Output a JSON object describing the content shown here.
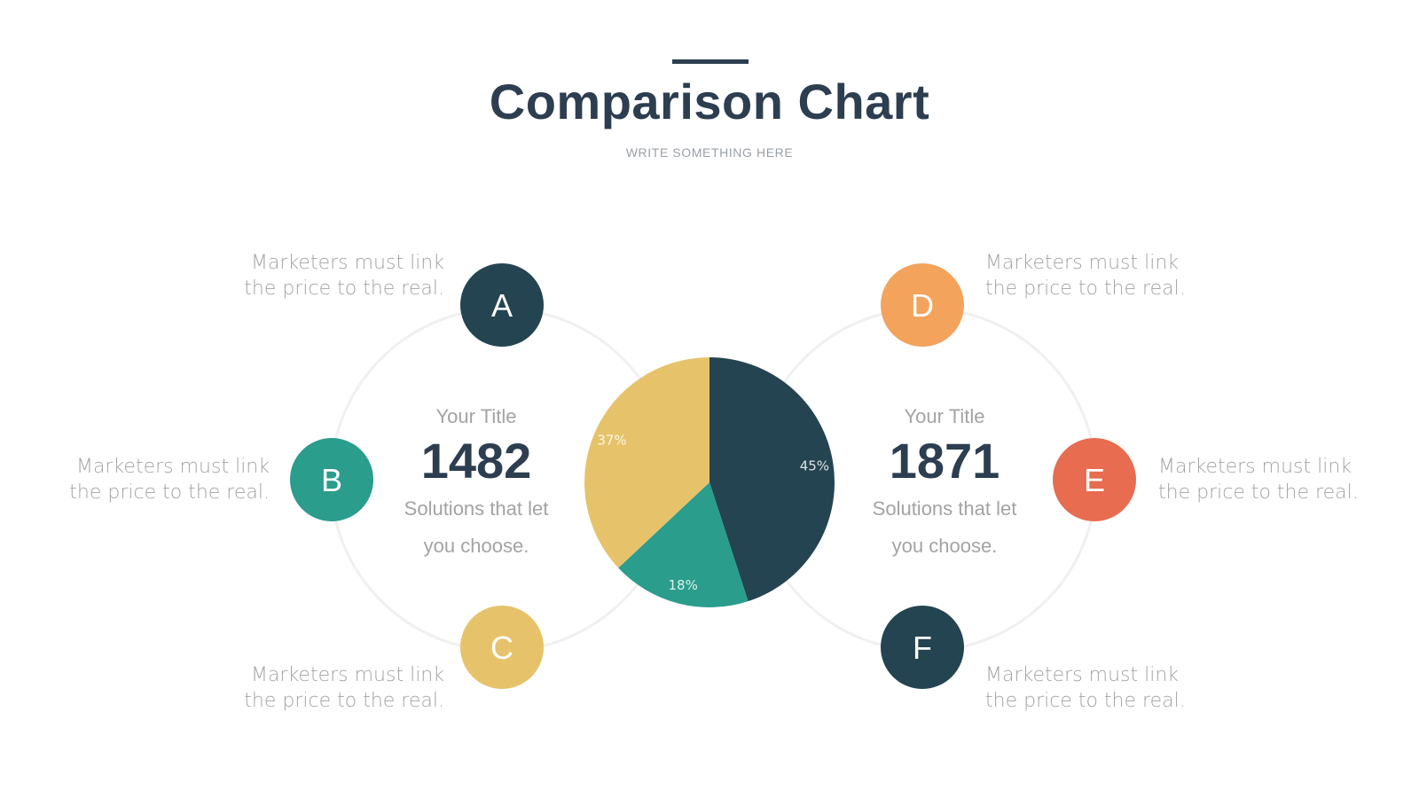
{
  "header": {
    "title": "Comparison Chart",
    "subtitle": "WRITE SOMETHING HERE"
  },
  "colors": {
    "navy": "#234450",
    "teal": "#2a9d8c",
    "gold": "#e6c36b",
    "orange": "#f3a35c",
    "red": "#e76c50",
    "ring": "#f0f0f0",
    "text": "#2c3e50",
    "muted": "#a3a3a3"
  },
  "left_panel": {
    "title": "Your Title",
    "number": "1482",
    "text": "Solutions that let you choose."
  },
  "right_panel": {
    "title": "Your Title",
    "number": "1871",
    "text": "Solutions that let you choose."
  },
  "nodes": [
    {
      "letter": "A",
      "color": "#234450",
      "text": "Marketers must link the price to the real."
    },
    {
      "letter": "B",
      "color": "#2a9d8c",
      "text": "Marketers must link the price to the real."
    },
    {
      "letter": "C",
      "color": "#e6c36b",
      "text": "Marketers must link the price to the real."
    },
    {
      "letter": "D",
      "color": "#f3a35c",
      "text": "Marketers must link the price to the real."
    },
    {
      "letter": "E",
      "color": "#e76c50",
      "text": "Marketers must link the price to the real."
    },
    {
      "letter": "F",
      "color": "#234450",
      "text": "Marketers must link the price to the real."
    }
  ],
  "chart_data": {
    "type": "pie",
    "title": "",
    "slices": [
      {
        "label": "45%",
        "value": 45,
        "color": "#234450"
      },
      {
        "label": "18%",
        "value": 18,
        "color": "#2a9d8c"
      },
      {
        "label": "37%",
        "value": 37,
        "color": "#e6c36b"
      }
    ],
    "start_angle": "12 o'clock",
    "direction": "clockwise"
  }
}
